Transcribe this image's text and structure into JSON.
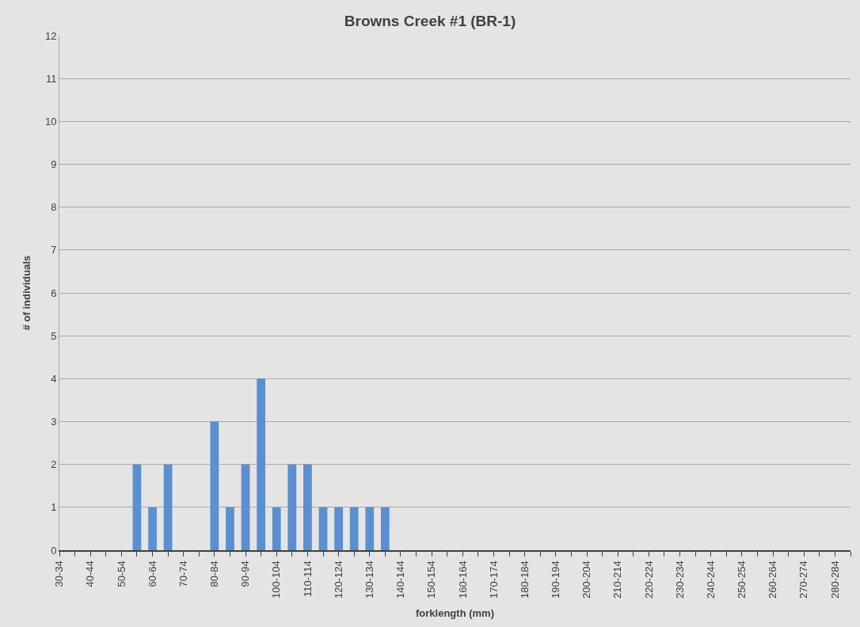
{
  "chart_data": {
    "type": "bar",
    "title": "Browns Creek #1 (BR-1)",
    "xlabel": "forklength (mm)",
    "ylabel": "# of individuals",
    "categories": [
      "30-34",
      null,
      "40-44",
      null,
      "50-54",
      null,
      "60-64",
      null,
      "70-74",
      null,
      "80-84",
      null,
      "90-94",
      null,
      "100-104",
      null,
      "110-114",
      null,
      "120-124",
      null,
      "130-134",
      null,
      "140-144",
      null,
      "150-154",
      null,
      "160-164",
      null,
      "170-174",
      null,
      "180-184",
      null,
      "190-194",
      null,
      "200-204",
      null,
      "210-214",
      null,
      "220-224",
      null,
      "230-234",
      null,
      "240-244",
      null,
      "250-254",
      null,
      "260-264",
      null,
      "270-274",
      null,
      "280-284",
      null
    ],
    "values": [
      0,
      0,
      0,
      0,
      0,
      2,
      1,
      2,
      0,
      0,
      3,
      1,
      2,
      4,
      1,
      2,
      2,
      1,
      1,
      1,
      1,
      1,
      0,
      0,
      0,
      0,
      0,
      0,
      0,
      0,
      0,
      0,
      0,
      0,
      0,
      0,
      0,
      0,
      0,
      0,
      0,
      0,
      0,
      0,
      0,
      0,
      0,
      0,
      0,
      0,
      0,
      0
    ],
    "color": "#5b8fd0",
    "ylim": [
      0,
      12
    ],
    "yticks": [
      0,
      1,
      2,
      3,
      4,
      5,
      6,
      7,
      8,
      9,
      10,
      11,
      12
    ],
    "grid": "y"
  }
}
